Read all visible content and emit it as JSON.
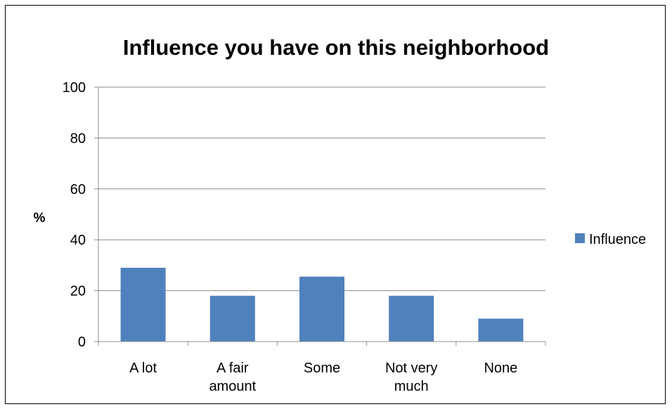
{
  "chart_data": {
    "type": "bar",
    "title": "Influence you have on this neighborhood",
    "ylabel": "%",
    "xlabel": "",
    "categories": [
      [
        "A lot"
      ],
      [
        "A fair",
        "amount"
      ],
      [
        "Some"
      ],
      [
        "Not very",
        "much"
      ],
      [
        "None"
      ]
    ],
    "series": [
      {
        "name": "Influence",
        "values": [
          29,
          18,
          25.5,
          18,
          9
        ],
        "color": "#4f81bd"
      }
    ],
    "ylim": [
      0,
      100
    ],
    "yticks": [
      0,
      20,
      40,
      60,
      80,
      100
    ],
    "grid": true,
    "legend_position": "right"
  }
}
